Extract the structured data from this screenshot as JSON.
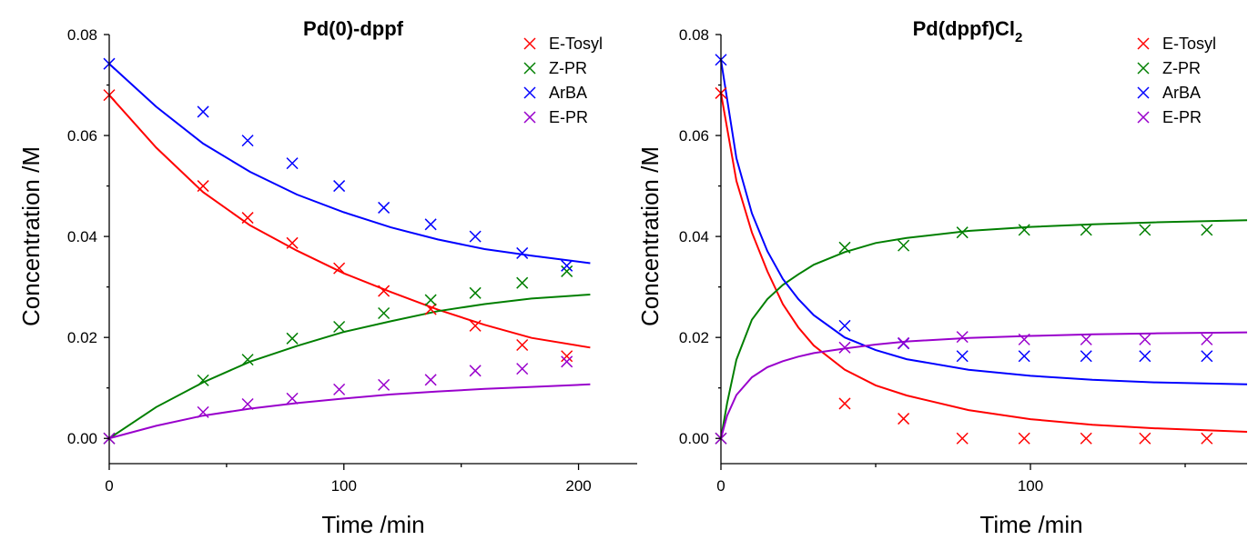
{
  "chart_data": [
    {
      "type": "scatter",
      "title": "Pd(0)-dppf",
      "xlabel": "Time /min",
      "ylabel": "Concentration /M",
      "xlim": [
        0,
        225
      ],
      "ylim": [
        -0.005,
        0.08
      ],
      "xticks": [
        0,
        100,
        200
      ],
      "xtick_labels": [
        "0",
        "100",
        "200"
      ],
      "yticks": [
        0.0,
        0.02,
        0.04,
        0.06,
        0.08
      ],
      "ytick_labels": [
        "0.00",
        "0.02",
        "0.04",
        "0.06",
        "0.08"
      ],
      "grid": false,
      "legend_position": "top-right",
      "series": [
        {
          "name": "E-Tosyl",
          "color": "#ff0000",
          "x": [
            0,
            40,
            59,
            78,
            98,
            117,
            137,
            156,
            176,
            195
          ],
          "y": [
            0.068,
            0.05,
            0.0437,
            0.0387,
            0.0337,
            0.0292,
            0.0256,
            0.0223,
            0.0185,
            0.0163
          ],
          "fit_x": [
            0,
            20,
            40,
            60,
            80,
            100,
            120,
            140,
            160,
            180,
            205
          ],
          "fit_y": [
            0.068,
            0.0576,
            0.0488,
            0.0422,
            0.0372,
            0.0327,
            0.029,
            0.0255,
            0.0225,
            0.0199,
            0.018
          ]
        },
        {
          "name": "Z-PR",
          "color": "#007f00",
          "x": [
            0,
            40,
            59,
            78,
            98,
            117,
            137,
            156,
            176,
            195
          ],
          "y": [
            0.0,
            0.0115,
            0.0156,
            0.0198,
            0.0221,
            0.0248,
            0.0274,
            0.0288,
            0.0308,
            0.0331
          ],
          "fit_x": [
            0,
            20,
            40,
            60,
            80,
            100,
            120,
            140,
            160,
            180,
            205
          ],
          "fit_y": [
            0.0,
            0.0062,
            0.0111,
            0.0152,
            0.0183,
            0.0211,
            0.0232,
            0.0252,
            0.0266,
            0.0277,
            0.0285
          ]
        },
        {
          "name": "ArBA",
          "color": "#0000ff",
          "x": [
            0,
            40,
            59,
            78,
            98,
            117,
            137,
            156,
            176,
            195
          ],
          "y": [
            0.0742,
            0.0647,
            0.059,
            0.0545,
            0.05,
            0.0457,
            0.0424,
            0.04,
            0.0367,
            0.0342
          ],
          "fit_x": [
            0,
            20,
            40,
            60,
            80,
            100,
            120,
            140,
            160,
            180,
            205
          ],
          "fit_y": [
            0.0742,
            0.0657,
            0.0584,
            0.0528,
            0.0483,
            0.0448,
            0.0418,
            0.0394,
            0.0375,
            0.0362,
            0.0347
          ]
        },
        {
          "name": "E-PR",
          "color": "#9900cc",
          "x": [
            0,
            40,
            59,
            78,
            98,
            117,
            137,
            156,
            176,
            195
          ],
          "y": [
            0.0,
            0.0052,
            0.0068,
            0.0079,
            0.0097,
            0.0106,
            0.0116,
            0.0134,
            0.0138,
            0.0152
          ],
          "fit_x": [
            0,
            20,
            40,
            60,
            80,
            100,
            120,
            140,
            160,
            180,
            205
          ],
          "fit_y": [
            0.0,
            0.0025,
            0.0045,
            0.0059,
            0.007,
            0.0079,
            0.0087,
            0.0093,
            0.0098,
            0.0102,
            0.0107
          ]
        }
      ]
    },
    {
      "type": "scatter",
      "title": "Pd(dppf)Cl",
      "title_subscript": "2",
      "xlabel": "Time /min",
      "ylabel": "Concentration /M",
      "xlim": [
        0,
        170
      ],
      "ylim": [
        -0.005,
        0.08
      ],
      "xticks": [
        0,
        100
      ],
      "xtick_labels": [
        "0",
        "100"
      ],
      "yticks": [
        0.0,
        0.02,
        0.04,
        0.06,
        0.08
      ],
      "ytick_labels": [
        "0.00",
        "0.02",
        "0.04",
        "0.06",
        "0.08"
      ],
      "grid": false,
      "legend_position": "top-right",
      "series": [
        {
          "name": "E-Tosyl",
          "color": "#ff0000",
          "x": [
            0,
            40,
            59,
            78,
            98,
            118,
            137,
            157
          ],
          "y": [
            0.0684,
            0.0069,
            0.0039,
            0.0,
            0.0,
            0.0,
            0.0,
            0.0
          ],
          "fit_x": [
            0,
            5,
            10,
            15,
            20,
            25,
            30,
            40,
            50,
            60,
            80,
            100,
            120,
            140,
            170
          ],
          "fit_y": [
            0.0684,
            0.051,
            0.0408,
            0.0331,
            0.0266,
            0.022,
            0.0184,
            0.0136,
            0.0105,
            0.0085,
            0.0056,
            0.0038,
            0.0027,
            0.002,
            0.0013
          ]
        },
        {
          "name": "Z-PR",
          "color": "#007f00",
          "x": [
            0,
            40,
            59,
            78,
            98,
            118,
            137,
            157
          ],
          "y": [
            0.0,
            0.0378,
            0.0382,
            0.0408,
            0.0413,
            0.0413,
            0.0413,
            0.0413
          ],
          "fit_x": [
            0,
            2,
            5,
            10,
            15,
            20,
            25,
            30,
            40,
            50,
            60,
            80,
            100,
            120,
            140,
            170
          ],
          "fit_y": [
            0.0,
            0.007,
            0.0156,
            0.0235,
            0.0276,
            0.0304,
            0.0325,
            0.0344,
            0.0369,
            0.0387,
            0.0397,
            0.0411,
            0.0419,
            0.0424,
            0.0428,
            0.0432
          ]
        },
        {
          "name": "ArBA",
          "color": "#0000ff",
          "x": [
            0,
            40,
            59,
            78,
            98,
            118,
            137,
            157
          ],
          "y": [
            0.075,
            0.0223,
            0.0188,
            0.0163,
            0.0163,
            0.0163,
            0.0163,
            0.0163
          ],
          "fit_x": [
            0,
            5,
            10,
            15,
            20,
            25,
            30,
            40,
            50,
            60,
            80,
            100,
            120,
            140,
            170
          ],
          "fit_y": [
            0.075,
            0.0555,
            0.0446,
            0.0371,
            0.0316,
            0.0276,
            0.0244,
            0.02,
            0.0175,
            0.0157,
            0.0136,
            0.0124,
            0.0116,
            0.0111,
            0.0107
          ]
        },
        {
          "name": "E-PR",
          "color": "#9900cc",
          "x": [
            0,
            40,
            59,
            78,
            98,
            118,
            137,
            157
          ],
          "y": [
            0.0,
            0.018,
            0.0189,
            0.0201,
            0.0196,
            0.0196,
            0.0196,
            0.0196
          ],
          "fit_x": [
            0,
            2,
            5,
            10,
            15,
            20,
            25,
            30,
            40,
            50,
            60,
            80,
            100,
            120,
            140,
            170
          ],
          "fit_y": [
            0.0,
            0.0045,
            0.0086,
            0.0121,
            0.0141,
            0.0153,
            0.0162,
            0.0169,
            0.0178,
            0.0186,
            0.0192,
            0.0199,
            0.0203,
            0.0206,
            0.0208,
            0.021
          ]
        }
      ]
    }
  ]
}
